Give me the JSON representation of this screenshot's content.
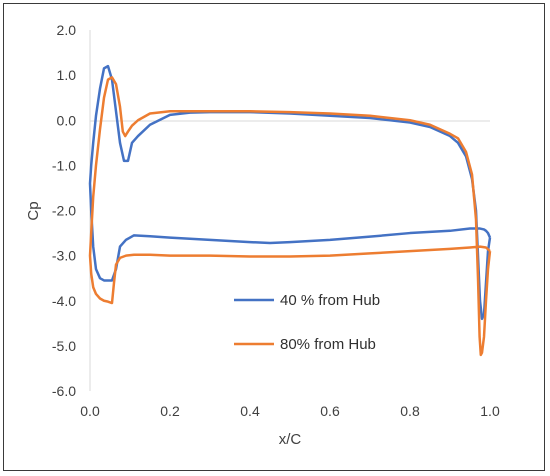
{
  "chart_data": {
    "type": "line",
    "title": "",
    "xlabel": "x/C",
    "ylabel": "Cp",
    "xlim": [
      0,
      1.0
    ],
    "ylim": [
      -6,
      2
    ],
    "xticks": [
      "0.0",
      "0.2",
      "0.4",
      "0.6",
      "0.8",
      "1.0"
    ],
    "yticks": [
      "2.0",
      "1.0",
      "0.0",
      "-1.0",
      "-2.0",
      "-3.0",
      "-4.0",
      "-5.0",
      "-6.0"
    ],
    "grid": false,
    "legend_position": "lower-center",
    "series": [
      {
        "name": "40 % from Hub",
        "color": "#4472C4",
        "x": [
          1.0,
          0.995,
          0.99,
          0.985,
          0.98,
          0.975,
          0.97,
          0.965,
          0.955,
          0.94,
          0.92,
          0.9,
          0.85,
          0.8,
          0.7,
          0.6,
          0.5,
          0.4,
          0.3,
          0.25,
          0.2,
          0.15,
          0.12,
          0.105,
          0.095,
          0.085,
          0.075,
          0.065,
          0.055,
          0.045,
          0.035,
          0.025,
          0.015,
          0.008,
          0.003,
          0.0,
          0.003,
          0.008,
          0.015,
          0.025,
          0.035,
          0.045,
          0.055,
          0.065,
          0.075,
          0.09,
          0.11,
          0.15,
          0.2,
          0.3,
          0.4,
          0.45,
          0.5,
          0.6,
          0.7,
          0.8,
          0.9,
          0.95,
          0.975,
          0.985,
          0.99,
          0.995,
          1.0
        ],
        "y": [
          -2.6,
          -2.9,
          -3.6,
          -4.3,
          -4.4,
          -4.0,
          -3.0,
          -2.0,
          -1.3,
          -0.8,
          -0.5,
          -0.35,
          -0.15,
          -0.05,
          0.05,
          0.1,
          0.15,
          0.18,
          0.18,
          0.17,
          0.12,
          -0.1,
          -0.35,
          -0.5,
          -0.9,
          -0.9,
          -0.5,
          0.2,
          0.9,
          1.2,
          1.15,
          0.7,
          0.1,
          -0.5,
          -1.0,
          -1.4,
          -2.0,
          -2.8,
          -3.3,
          -3.5,
          -3.55,
          -3.55,
          -3.55,
          -3.3,
          -2.8,
          -2.65,
          -2.55,
          -2.57,
          -2.6,
          -2.65,
          -2.7,
          -2.72,
          -2.7,
          -2.65,
          -2.58,
          -2.5,
          -2.45,
          -2.4,
          -2.4,
          -2.42,
          -2.45,
          -2.5,
          -2.6
        ]
      },
      {
        "name": "80% from Hub",
        "color": "#ED7D31",
        "x": [
          1.0,
          0.995,
          0.99,
          0.985,
          0.98,
          0.977,
          0.974,
          0.97,
          0.965,
          0.955,
          0.94,
          0.92,
          0.9,
          0.85,
          0.8,
          0.7,
          0.6,
          0.5,
          0.4,
          0.3,
          0.2,
          0.15,
          0.12,
          0.105,
          0.095,
          0.088,
          0.082,
          0.075,
          0.065,
          0.055,
          0.045,
          0.035,
          0.025,
          0.015,
          0.008,
          0.003,
          0.0,
          0.003,
          0.008,
          0.015,
          0.025,
          0.035,
          0.045,
          0.055,
          0.06,
          0.065,
          0.075,
          0.09,
          0.11,
          0.15,
          0.2,
          0.3,
          0.4,
          0.5,
          0.6,
          0.7,
          0.8,
          0.9,
          0.95,
          0.975,
          0.99,
          1.0
        ],
        "y": [
          -2.9,
          -3.3,
          -4.0,
          -4.8,
          -5.15,
          -5.2,
          -4.8,
          -3.5,
          -2.2,
          -1.2,
          -0.7,
          -0.4,
          -0.3,
          -0.1,
          0.0,
          0.1,
          0.15,
          0.18,
          0.2,
          0.2,
          0.2,
          0.15,
          0.0,
          -0.12,
          -0.25,
          -0.35,
          -0.25,
          0.3,
          0.8,
          0.95,
          0.9,
          0.5,
          -0.2,
          -1.0,
          -1.7,
          -2.5,
          -3.0,
          -3.4,
          -3.7,
          -3.85,
          -3.95,
          -4.0,
          -4.02,
          -4.05,
          -3.6,
          -3.2,
          -3.05,
          -3.0,
          -2.98,
          -2.98,
          -3.0,
          -3.0,
          -3.02,
          -3.02,
          -3.0,
          -2.95,
          -2.9,
          -2.85,
          -2.82,
          -2.8,
          -2.82,
          -2.9
        ]
      }
    ]
  }
}
